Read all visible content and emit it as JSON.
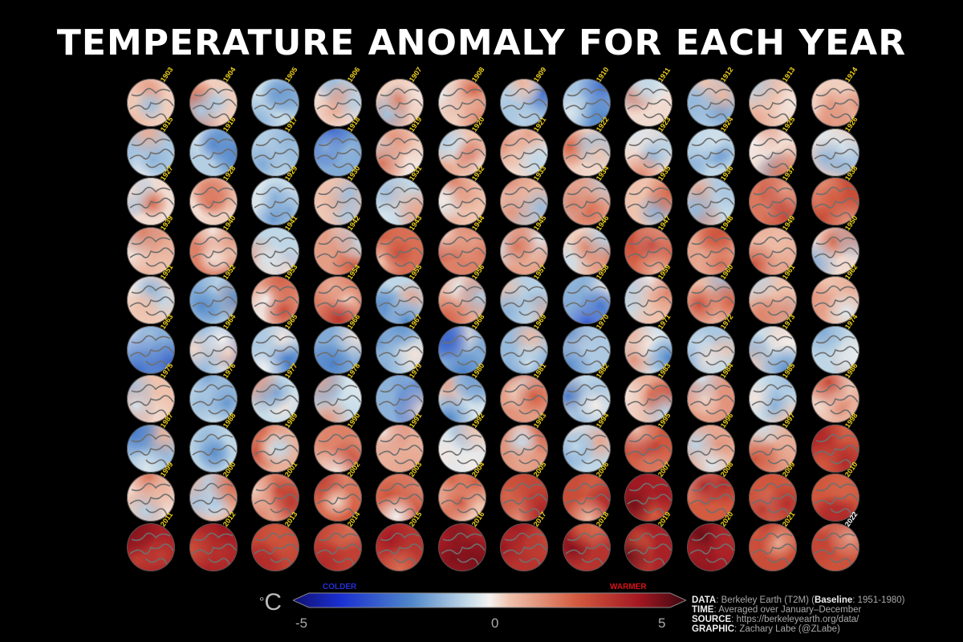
{
  "title": "TEMPERATURE ANOMALY FOR EACH YEAR",
  "chart_data": {
    "type": "heatmap",
    "title": "TEMPERATURE ANOMALY FOR EACH YEAR",
    "description_units": "°C",
    "years": [
      1903,
      1904,
      1905,
      1906,
      1907,
      1908,
      1909,
      1910,
      1911,
      1912,
      1913,
      1914,
      1915,
      1916,
      1917,
      1918,
      1919,
      1920,
      1921,
      1922,
      1923,
      1924,
      1925,
      1926,
      1927,
      1928,
      1929,
      1930,
      1931,
      1932,
      1933,
      1934,
      1935,
      1936,
      1937,
      1938,
      1939,
      1940,
      1941,
      1942,
      1943,
      1944,
      1945,
      1946,
      1947,
      1948,
      1949,
      1950,
      1951,
      1952,
      1953,
      1954,
      1955,
      1956,
      1957,
      1958,
      1959,
      1960,
      1961,
      1962,
      1963,
      1964,
      1965,
      1966,
      1967,
      1968,
      1969,
      1970,
      1971,
      1972,
      1973,
      1974,
      1975,
      1976,
      1977,
      1978,
      1979,
      1980,
      1981,
      1982,
      1983,
      1984,
      1985,
      1986,
      1987,
      1988,
      1989,
      1990,
      1991,
      1992,
      1993,
      1994,
      1995,
      1996,
      1997,
      1998,
      1999,
      2000,
      2001,
      2002,
      2003,
      2004,
      2005,
      2006,
      2007,
      2008,
      2009,
      2010,
      2011,
      2012,
      2013,
      2014,
      2015,
      2016,
      2017,
      2018,
      2019,
      2020,
      2021,
      2022
    ],
    "approx_mean_anomaly": [
      0.3,
      0.3,
      -0.3,
      0.2,
      0.3,
      0.3,
      -0.7,
      -0.7,
      0.2,
      -0.6,
      0.3,
      0.3,
      -0.6,
      -0.5,
      -0.5,
      -1.0,
      0.3,
      0.4,
      0.2,
      0.3,
      0.2,
      -0.4,
      0.2,
      0.3,
      0.2,
      0.3,
      -0.2,
      0.5,
      -0.4,
      0.4,
      0.5,
      0.8,
      0.4,
      -0.3,
      1.2,
      1.8,
      0.6,
      1.1,
      -0.4,
      0.8,
      1.3,
      1.1,
      0.8,
      0.3,
      1.4,
      0.7,
      0.6,
      0.2,
      0.3,
      -0.5,
      0.7,
      1.1,
      -0.4,
      0.6,
      -0.5,
      -1.0,
      0.4,
      0.5,
      0.4,
      0.6,
      -1.0,
      -0.8,
      -0.6,
      -1.0,
      -0.4,
      -1.0,
      -0.8,
      -0.6,
      -0.2,
      -0.6,
      -0.3,
      -0.4,
      0.4,
      -0.3,
      -0.3,
      -0.3,
      -0.9,
      -0.2,
      0.9,
      -0.4,
      0.6,
      0.9,
      -0.3,
      0.6,
      -0.7,
      -0.4,
      0.6,
      1.0,
      0.6,
      -0.2,
      0.9,
      -0.4,
      1.6,
      0.7,
      0.6,
      1.9,
      0.2,
      0.6,
      1.1,
      1.3,
      1.2,
      0.4,
      2.0,
      1.8,
      2.6,
      1.5,
      1.6,
      1.6,
      2.8,
      2.7,
      2.0,
      2.1,
      2.2,
      2.9,
      2.4,
      2.4,
      2.8,
      2.9,
      1.8,
      1.7
    ],
    "colorbar": {
      "min": -5,
      "max": 5,
      "ticks": [
        -5,
        0,
        5
      ],
      "low_label": "COLDER",
      "high_label": "WARMER",
      "unit": "°C"
    },
    "grid": {
      "rows": 10,
      "cols": 12
    }
  },
  "colorbar": {
    "colder": "COLDER",
    "warmer": "WARMER",
    "tick_min": "-5",
    "tick_mid": "0",
    "tick_max": "5",
    "unit_deg": "°",
    "unit_c": "C"
  },
  "info": {
    "data_label": "DATA",
    "data_text": ": Berkeley Earth (T2M) (",
    "baseline_label": "Baseline",
    "baseline_text": ": 1951-1980)",
    "time_label": "TIME",
    "time_text": ": Averaged over January–December",
    "source_label": "SOURCE",
    "source_text": ": https://berkeleyearth.org/data/",
    "graphic_label": "GRAPHIC",
    "graphic_text": ": Zachary Labe (@ZLabe)"
  },
  "colors": {
    "year_label": "#f2d21b",
    "last_year_label": "#ffffff",
    "colder": "#2430d8",
    "warmer": "#d8141c"
  }
}
